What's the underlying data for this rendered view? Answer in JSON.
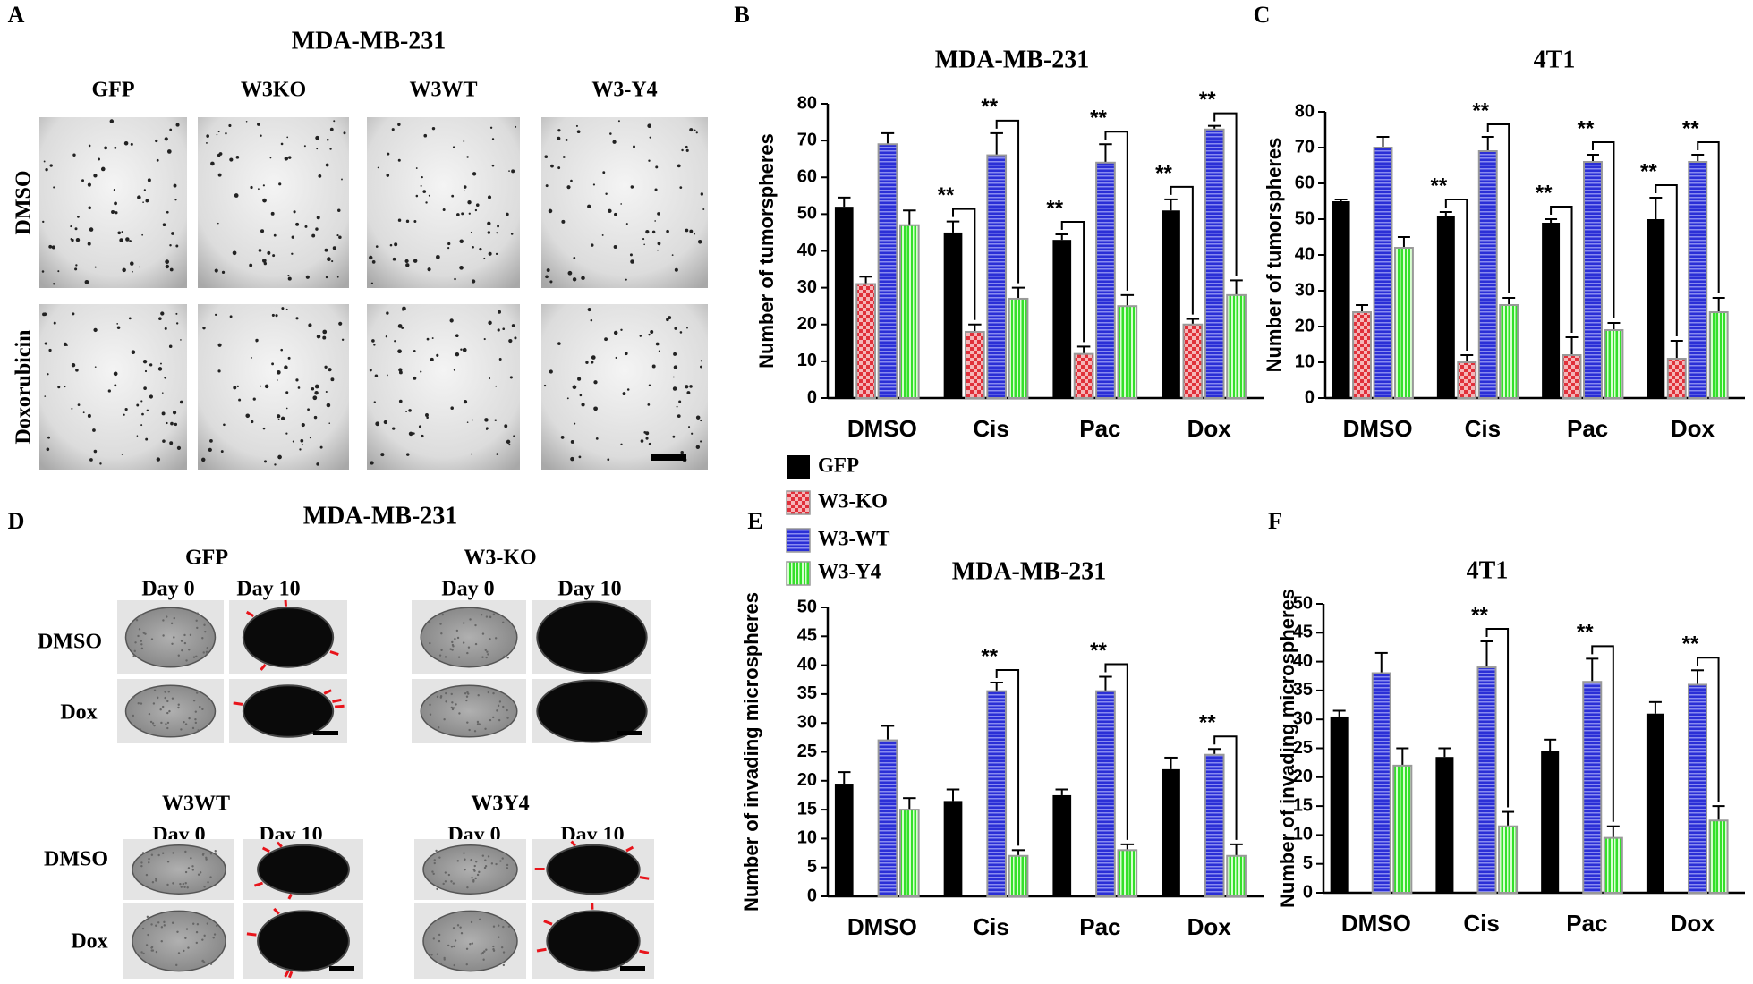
{
  "figure": {
    "panelA": {
      "letter": "A",
      "title": "MDA-MB-231",
      "columns": [
        "GFP",
        "W3KO",
        "W3WT",
        "W3-Y4"
      ],
      "rows": [
        "DMSO",
        "Doxorubicin"
      ]
    },
    "panelD": {
      "letter": "D",
      "title": "MDA-MB-231",
      "groups": [
        {
          "name": "GFP",
          "days": [
            "Day 0",
            "Day 10"
          ],
          "rows": [
            "DMSO",
            "Dox"
          ]
        },
        {
          "name": "W3-KO",
          "days": [
            "Day 0",
            "Day 10"
          ]
        },
        {
          "name": "W3WT",
          "days": [
            "Day 0",
            "Day 10"
          ],
          "rows": [
            "DMSO",
            "Dox"
          ]
        },
        {
          "name": "W3Y4",
          "days": [
            "Day 0",
            "Day  10"
          ]
        }
      ]
    }
  },
  "chart_data": [
    {
      "type": "bar",
      "panel": "B",
      "title": "MDA-MB-231",
      "ylabel": "Number of tumorspheres",
      "legend": true,
      "categories": [
        "DMSO",
        "Cis",
        "Pac",
        "Dox"
      ],
      "series": [
        {
          "name": "GFP",
          "color": "#000000",
          "pattern": "solid",
          "values": [
            52,
            45,
            43,
            51
          ],
          "errors": [
            2.5,
            3,
            1.5,
            3
          ]
        },
        {
          "name": "W3-KO",
          "color": "#e0303a",
          "pattern": "checker",
          "values": [
            31,
            18,
            12,
            20
          ],
          "errors": [
            2,
            2,
            2,
            1.5
          ]
        },
        {
          "name": "W3-WT",
          "color": "#2b2fd6",
          "pattern": "hlines",
          "values": [
            69,
            66,
            64,
            73
          ],
          "errors": [
            3,
            6,
            5,
            1
          ]
        },
        {
          "name": "W3-Y4",
          "color": "#33e02a",
          "pattern": "vlines",
          "values": [
            47,
            27,
            25,
            28
          ],
          "errors": [
            4,
            3,
            3,
            4
          ]
        }
      ],
      "ylim": [
        0,
        80
      ],
      "yticks": [
        0,
        10,
        20,
        30,
        40,
        50,
        60,
        70,
        80
      ],
      "significance": [
        {
          "category": 1,
          "pair": [
            0,
            1
          ],
          "label": "**"
        },
        {
          "category": 1,
          "pair": [
            2,
            3
          ],
          "label": "**"
        },
        {
          "category": 2,
          "pair": [
            0,
            1
          ],
          "label": "**"
        },
        {
          "category": 2,
          "pair": [
            2,
            3
          ],
          "label": "**"
        },
        {
          "category": 3,
          "pair": [
            0,
            1
          ],
          "label": "**"
        },
        {
          "category": 3,
          "pair": [
            2,
            3
          ],
          "label": "**"
        }
      ]
    },
    {
      "type": "bar",
      "panel": "C",
      "title": "4T1",
      "ylabel": "Number of tumorspheres",
      "categories": [
        "DMSO",
        "Cis",
        "Pac",
        "Dox"
      ],
      "series": [
        {
          "color": "#000000",
          "pattern": "solid",
          "values": [
            55,
            51,
            49,
            50
          ],
          "errors": [
            0.5,
            1,
            1,
            6
          ]
        },
        {
          "color": "#e0303a",
          "pattern": "checker",
          "values": [
            24,
            10,
            12,
            11
          ],
          "errors": [
            2,
            2,
            5,
            5
          ]
        },
        {
          "color": "#2b2fd6",
          "pattern": "hlines",
          "values": [
            70,
            69,
            66,
            66
          ],
          "errors": [
            3,
            4,
            2,
            2
          ]
        },
        {
          "color": "#33e02a",
          "pattern": "vlines",
          "values": [
            42,
            26,
            19,
            24
          ],
          "errors": [
            3,
            2,
            2,
            4
          ]
        }
      ],
      "ylim": [
        0,
        80
      ],
      "yticks": [
        0,
        10,
        20,
        30,
        40,
        50,
        60,
        70,
        80
      ],
      "significance": [
        {
          "category": 1,
          "pair": [
            0,
            1
          ],
          "label": "**"
        },
        {
          "category": 1,
          "pair": [
            2,
            3
          ],
          "label": "**"
        },
        {
          "category": 2,
          "pair": [
            0,
            1
          ],
          "label": "**"
        },
        {
          "category": 2,
          "pair": [
            2,
            3
          ],
          "label": "**"
        },
        {
          "category": 3,
          "pair": [
            0,
            1
          ],
          "label": "**"
        },
        {
          "category": 3,
          "pair": [
            2,
            3
          ],
          "label": "**"
        }
      ]
    },
    {
      "type": "bar",
      "panel": "E",
      "title": "MDA-MB-231",
      "ylabel": "Number of invading microspheres",
      "categories": [
        "DMSO",
        "Cis",
        "Pac",
        "Dox"
      ],
      "series": [
        {
          "color": "#000000",
          "pattern": "solid",
          "values": [
            19.5,
            16.5,
            17.5,
            22
          ],
          "errors": [
            2,
            2,
            1,
            2
          ]
        },
        {
          "color": "#e0303a",
          "pattern": "checker",
          "values": [
            null,
            null,
            null,
            null
          ],
          "errors": [
            null,
            null,
            null,
            null
          ]
        },
        {
          "color": "#2b2fd6",
          "pattern": "hlines",
          "values": [
            27,
            35.5,
            35.5,
            24.5
          ],
          "errors": [
            2.5,
            1.5,
            2.5,
            1
          ]
        },
        {
          "color": "#33e02a",
          "pattern": "vlines",
          "values": [
            15,
            7,
            8,
            7
          ],
          "errors": [
            2,
            1,
            1,
            2
          ]
        }
      ],
      "ylim": [
        0,
        50
      ],
      "yticks": [
        0,
        5,
        10,
        15,
        20,
        25,
        30,
        35,
        40,
        45,
        50
      ],
      "significance": [
        {
          "category": 1,
          "pair": [
            2,
            3
          ],
          "label": "**"
        },
        {
          "category": 2,
          "pair": [
            2,
            3
          ],
          "label": "**"
        },
        {
          "category": 3,
          "pair": [
            2,
            3
          ],
          "label": "**"
        }
      ]
    },
    {
      "type": "bar",
      "panel": "F",
      "title": "4T1",
      "ylabel": "Number of invading microspheres",
      "categories": [
        "DMSO",
        "Cis",
        "Pac",
        "Dox"
      ],
      "series": [
        {
          "color": "#000000",
          "pattern": "solid",
          "values": [
            30.5,
            23.5,
            24.5,
            31
          ],
          "errors": [
            1,
            1.5,
            2,
            2
          ]
        },
        {
          "color": "#e0303a",
          "pattern": "checker",
          "values": [
            null,
            null,
            null,
            null
          ],
          "errors": [
            null,
            null,
            null,
            null
          ]
        },
        {
          "color": "#2b2fd6",
          "pattern": "hlines",
          "values": [
            38,
            39,
            36.5,
            36
          ],
          "errors": [
            3.5,
            4.5,
            4,
            2.5
          ]
        },
        {
          "color": "#33e02a",
          "pattern": "vlines",
          "values": [
            22,
            11.5,
            9.5,
            12.5
          ],
          "errors": [
            3,
            2.5,
            2,
            2.5
          ]
        }
      ],
      "ylim": [
        0,
        50
      ],
      "yticks": [
        0,
        5,
        10,
        15,
        20,
        25,
        30,
        35,
        40,
        45,
        50
      ],
      "significance": [
        {
          "category": 1,
          "pair": [
            2,
            3
          ],
          "label": "**"
        },
        {
          "category": 2,
          "pair": [
            2,
            3
          ],
          "label": "**"
        },
        {
          "category": 3,
          "pair": [
            2,
            3
          ],
          "label": "**"
        }
      ]
    }
  ]
}
